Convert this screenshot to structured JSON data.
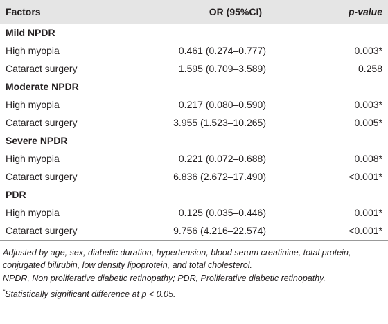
{
  "table": {
    "header": [
      "Factors",
      "OR (95%CI)",
      "p-value"
    ],
    "groups": [
      {
        "name": "Mild NPDR",
        "rows": [
          [
            "High myopia",
            "0.461 (0.274–0.777)",
            "0.003*"
          ],
          [
            "Cataract surgery",
            "1.595 (0.709–3.589)",
            "0.258"
          ]
        ]
      },
      {
        "name": "Moderate NPDR",
        "rows": [
          [
            "High myopia",
            "0.217 (0.080–0.590)",
            "0.003*"
          ],
          [
            "Cataract surgery",
            "3.955 (1.523–10.265)",
            "0.005*"
          ]
        ]
      },
      {
        "name": "Severe NPDR",
        "rows": [
          [
            "High myopia",
            "0.221 (0.072–0.688)",
            "0.008*"
          ],
          [
            "Cataract surgery",
            "6.836 (2.672–17.490)",
            "<0.001*"
          ]
        ]
      },
      {
        "name": "PDR",
        "rows": [
          [
            "High myopia",
            "0.125 (0.035–0.446)",
            "0.001*"
          ],
          [
            "Cataract surgery",
            "9.756 (4.216–22.574)",
            "<0.001*"
          ]
        ]
      }
    ]
  },
  "footnotes": {
    "adjusted": "Adjusted by age, sex, diabetic duration, hypertension, blood serum creatinine, total protein, conjugated bilirubin, low density lipoprotein, and total cholesterol.",
    "abbreviations": "NPDR, Non proliferative diabetic retinopathy; PDR, Proliferative diabetic retinopathy.",
    "significance_mark": "*",
    "significance": "Statistically significant difference at p < 0.05."
  }
}
